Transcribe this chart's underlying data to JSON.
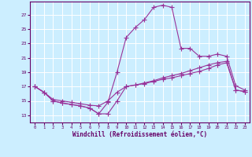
{
  "xlabel": "Windchill (Refroidissement éolien,°C)",
  "background_color": "#cceeff",
  "grid_color": "#ffffff",
  "line_color": "#993399",
  "x_ticks": [
    0,
    1,
    2,
    3,
    4,
    5,
    6,
    7,
    8,
    9,
    10,
    11,
    12,
    13,
    14,
    15,
    16,
    17,
    18,
    19,
    20,
    21,
    22,
    23
  ],
  "y_ticks": [
    13,
    15,
    17,
    19,
    21,
    23,
    25,
    27
  ],
  "xlim": [
    -0.5,
    23.5
  ],
  "ylim": [
    12.0,
    28.8
  ],
  "line1_x": [
    0,
    1,
    2,
    3,
    4,
    5,
    6,
    7,
    8,
    9,
    10,
    11,
    12,
    13,
    14,
    15,
    16,
    17,
    18,
    19,
    20,
    21,
    22,
    23
  ],
  "line1_y": [
    17.0,
    16.2,
    15.0,
    14.7,
    14.5,
    14.3,
    14.0,
    13.2,
    13.2,
    15.0,
    17.0,
    17.2,
    17.4,
    17.7,
    18.0,
    18.2,
    18.5,
    18.8,
    19.1,
    19.5,
    20.0,
    20.3,
    16.5,
    16.3
  ],
  "line2_x": [
    0,
    1,
    2,
    3,
    4,
    5,
    6,
    7,
    8,
    9,
    10,
    11,
    12,
    13,
    14,
    15,
    16,
    17,
    18,
    19,
    20,
    21,
    22,
    23
  ],
  "line2_y": [
    17.0,
    16.2,
    15.0,
    14.7,
    14.5,
    14.3,
    14.0,
    13.2,
    14.8,
    19.0,
    23.8,
    25.2,
    26.3,
    28.0,
    28.3,
    28.0,
    22.3,
    22.3,
    21.2,
    21.2,
    21.5,
    21.2,
    17.1,
    16.5
  ],
  "line3_x": [
    0,
    1,
    2,
    3,
    4,
    5,
    6,
    7,
    8,
    9,
    10,
    11,
    12,
    13,
    14,
    15,
    16,
    17,
    18,
    19,
    20,
    21,
    22,
    23
  ],
  "line3_y": [
    17.0,
    16.2,
    15.2,
    15.0,
    14.8,
    14.6,
    14.4,
    14.3,
    15.0,
    16.2,
    17.0,
    17.2,
    17.5,
    17.8,
    18.2,
    18.5,
    18.8,
    19.2,
    19.6,
    20.0,
    20.3,
    20.5,
    16.5,
    16.3
  ]
}
